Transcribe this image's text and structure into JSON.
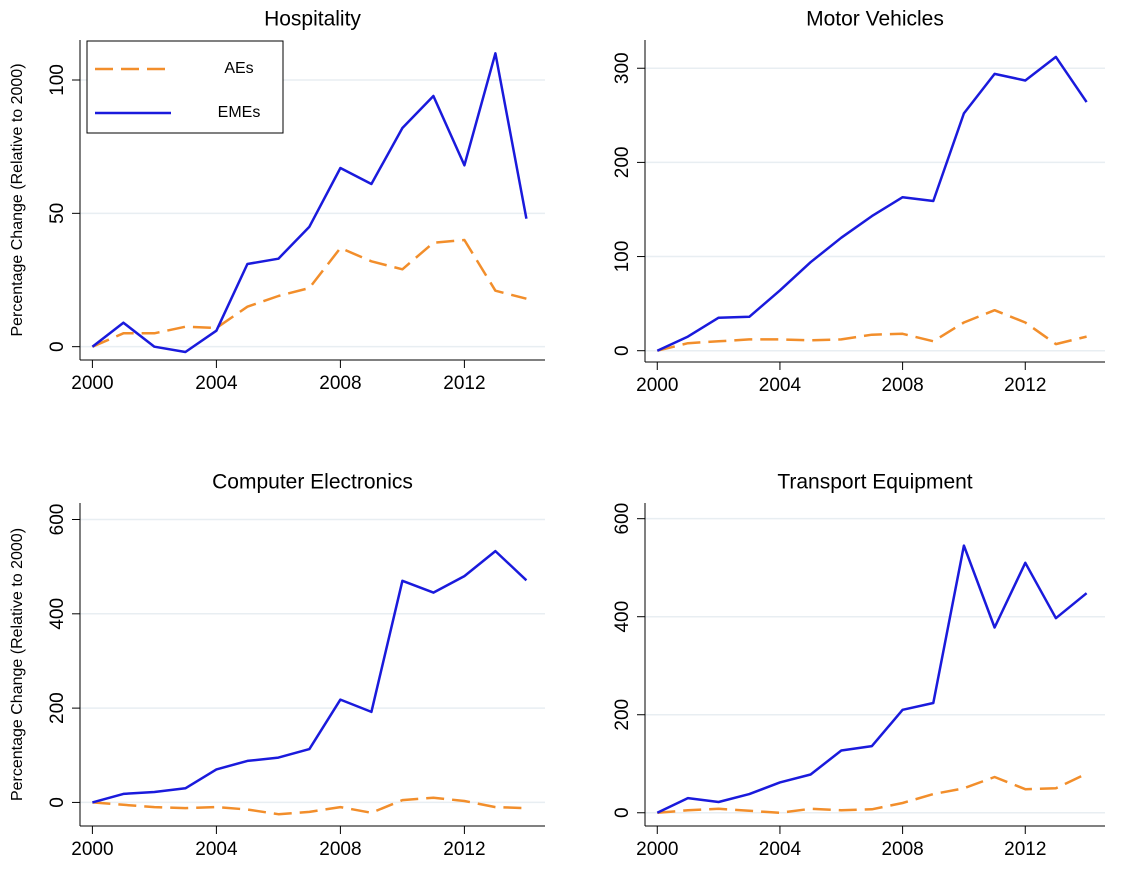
{
  "chart_data": [
    {
      "type": "line",
      "title": "Hospitality",
      "ylabel": "Percentage Change (Relative to 2000)",
      "x": [
        2000,
        2001,
        2002,
        2003,
        2004,
        2005,
        2006,
        2007,
        2008,
        2009,
        2010,
        2011,
        2012,
        2013,
        2014
      ],
      "series": [
        {
          "name": "AEs",
          "color": "#f28e2b",
          "dash": true,
          "values": [
            0,
            5,
            5,
            7.5,
            7,
            15,
            19,
            22,
            37,
            32,
            29,
            39,
            40,
            21,
            18
          ]
        },
        {
          "name": "EMEs",
          "color": "#1a1adc",
          "dash": false,
          "values": [
            0,
            9,
            0,
            -2,
            6,
            31,
            33,
            45,
            67,
            61,
            82,
            94,
            68,
            110,
            48
          ]
        }
      ],
      "xlim": [
        1999.6,
        2014.6
      ],
      "ylim": [
        -5,
        115
      ],
      "xticks": [
        2000,
        2004,
        2008,
        2012
      ],
      "yticks": [
        0,
        50,
        100
      ],
      "grid": true,
      "legend": "upper left"
    },
    {
      "type": "line",
      "title": "Motor Vehicles",
      "x": [
        2000,
        2001,
        2002,
        2003,
        2004,
        2005,
        2006,
        2007,
        2008,
        2009,
        2010,
        2011,
        2012,
        2013,
        2014
      ],
      "series": [
        {
          "color": "#f28e2b",
          "dash": true,
          "values": [
            0,
            8,
            10,
            12,
            12,
            11,
            12,
            17,
            18,
            10,
            30,
            43,
            30,
            7,
            15
          ]
        },
        {
          "color": "#1a1adc",
          "dash": false,
          "values": [
            0,
            15,
            35,
            36,
            64,
            94,
            120,
            143,
            163,
            159,
            252,
            294,
            287,
            312,
            264
          ]
        }
      ],
      "xlim": [
        1999.6,
        2014.6
      ],
      "ylim": [
        -12,
        330
      ],
      "xticks": [
        2000,
        2004,
        2008,
        2012
      ],
      "yticks": [
        0,
        100,
        200,
        300
      ],
      "grid": true
    },
    {
      "type": "line",
      "title": "Computer Electronics",
      "ylabel": "Percentage Change (Relative to 2000)",
      "x": [
        2000,
        2001,
        2002,
        2003,
        2004,
        2005,
        2006,
        2007,
        2008,
        2009,
        2010,
        2011,
        2012,
        2013,
        2014
      ],
      "series": [
        {
          "color": "#f28e2b",
          "dash": true,
          "values": [
            0,
            -5,
            -10,
            -12,
            -10,
            -15,
            -25,
            -20,
            -10,
            -22,
            5,
            10,
            3,
            -10,
            -12
          ]
        },
        {
          "color": "#1a1adc",
          "dash": false,
          "values": [
            0,
            18,
            22,
            30,
            70,
            88,
            95,
            113,
            218,
            192,
            470,
            445,
            480,
            533,
            471
          ]
        }
      ],
      "xlim": [
        1999.6,
        2014.6
      ],
      "ylim": [
        -50,
        635
      ],
      "xticks": [
        2000,
        2004,
        2008,
        2012
      ],
      "yticks": [
        0,
        200,
        400,
        600
      ],
      "grid": true
    },
    {
      "type": "line",
      "title": "Transport Equipment",
      "x": [
        2000,
        2001,
        2002,
        2003,
        2004,
        2005,
        2006,
        2007,
        2008,
        2009,
        2010,
        2011,
        2012,
        2013,
        2014
      ],
      "series": [
        {
          "color": "#f28e2b",
          "dash": true,
          "values": [
            0,
            5,
            8,
            4,
            0,
            8,
            5,
            7,
            20,
            38,
            50,
            73,
            48,
            50,
            80
          ]
        },
        {
          "color": "#1a1adc",
          "dash": false,
          "values": [
            0,
            30,
            22,
            38,
            62,
            78,
            127,
            136,
            210,
            224,
            545,
            378,
            510,
            397,
            448
          ]
        }
      ],
      "xlim": [
        1999.6,
        2014.6
      ],
      "ylim": [
        -27,
        632
      ],
      "xticks": [
        2000,
        2004,
        2008,
        2012
      ],
      "yticks": [
        0,
        200,
        400,
        600
      ],
      "grid": true
    }
  ]
}
